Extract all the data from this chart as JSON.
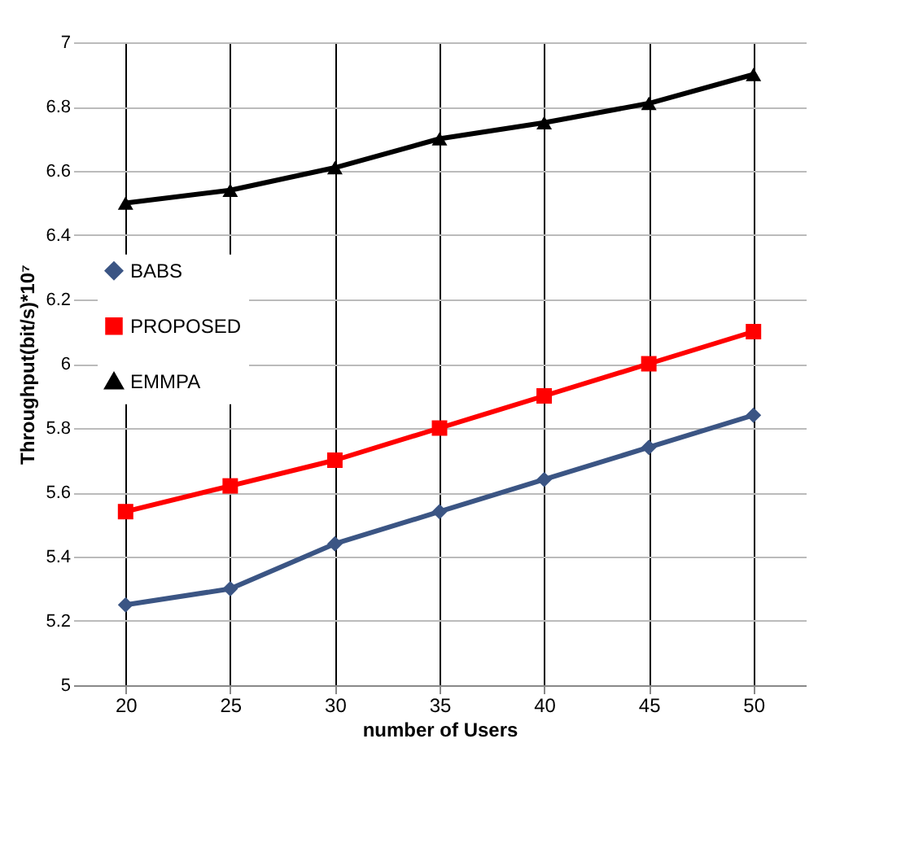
{
  "chart_data": {
    "type": "line",
    "xlabel": "number of Users",
    "ylabel": "Throughput(bit/s)*10⁷",
    "categories": [
      "20",
      "25",
      "30",
      "35",
      "40",
      "45",
      "50"
    ],
    "series": [
      {
        "name": "BABS",
        "color": "#3b5584",
        "marker": "diamond",
        "values": [
          5.25,
          5.3,
          5.44,
          5.54,
          5.64,
          5.74,
          5.84
        ]
      },
      {
        "name": "PROPOSED",
        "color": "#ff0000",
        "marker": "square",
        "values": [
          5.54,
          5.62,
          5.7,
          5.8,
          5.9,
          6.0,
          6.1
        ]
      },
      {
        "name": "EMMPA",
        "color": "#000000",
        "marker": "triangle",
        "values": [
          6.5,
          6.54,
          6.61,
          6.7,
          6.75,
          6.81,
          6.9
        ]
      }
    ],
    "ylim": [
      5,
      7
    ],
    "yticks": [
      5,
      5.2,
      5.4,
      5.6,
      5.8,
      6,
      6.2,
      6.4,
      6.6,
      6.8,
      7
    ],
    "grid": true,
    "legend": "left"
  }
}
